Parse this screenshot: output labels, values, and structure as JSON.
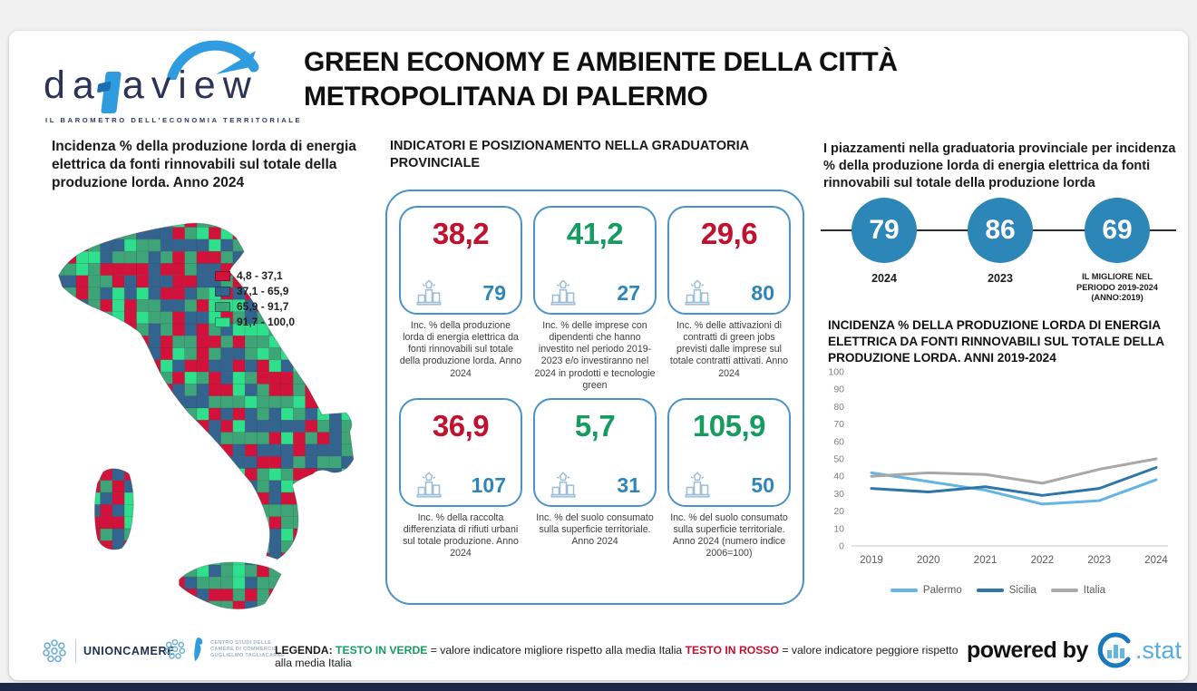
{
  "logo": {
    "wordmark_left": "da",
    "wordmark_right": "aview",
    "tagline": "IL BAROMETRO DELL'ECONOMIA TERRITORIALE"
  },
  "header": {
    "title": "GREEN ECONOMY E AMBIENTE DELLA CITTÀ METROPOLITANA DI PALERMO"
  },
  "map_section": {
    "title": "Incidenza % della produzione lorda di energia elettrica da fonti rinnovabili sul totale della produzione lorda. Anno 2024",
    "legend": [
      {
        "label": "4,8 - 37,1",
        "color": "#d2123a"
      },
      {
        "label": "37,1 - 65,9",
        "color": "#33648f"
      },
      {
        "label": "65,9 - 91,7",
        "color": "#3da578"
      },
      {
        "label": "91,7 - 100,0",
        "color": "#2ee08c"
      }
    ]
  },
  "indicators": {
    "title": "INDICATORI E POSIZIONAMENTO NELLA GRADUATORIA PROVINCIALE",
    "cards": [
      {
        "value": "38,2",
        "value_color": "#c0122f",
        "rank": "79",
        "caption": "Inc. % della produzione lorda di energia elettrica da fonti rinnovabili sul totale della produzione lorda. Anno 2024"
      },
      {
        "value": "41,2",
        "value_color": "#169c61",
        "rank": "27",
        "caption": "Inc. % delle imprese con dipendenti che hanno investito nel periodo 2019-2023 e/o investiranno nel 2024 in prodotti e tecnologie green"
      },
      {
        "value": "29,6",
        "value_color": "#c0122f",
        "rank": "80",
        "caption": "Inc. % delle attivazioni di contratti di green jobs previsti dalle imprese sul totale contratti attivati. Anno 2024"
      },
      {
        "value": "36,9",
        "value_color": "#c0122f",
        "rank": "107",
        "caption": "Inc. % della raccolta differenziata di rifiuti urbani sul totale produzione. Anno 2024"
      },
      {
        "value": "5,7",
        "value_color": "#169c61",
        "rank": "31",
        "caption": "Inc. % del suolo consumato sulla superficie territoriale. Anno 2024"
      },
      {
        "value": "105,9",
        "value_color": "#169c61",
        "rank": "50",
        "caption": "Inc. % del suolo consumato sulla superficie territoriale. Anno 2024 (numero indice 2006=100)"
      }
    ]
  },
  "rankings": {
    "title": "I piazzamenti nella graduatoria provinciale per incidenza % della produzione lorda di energia elettrica da fonti rinnovabili sul totale della produzione lorda",
    "circle_color": "#2d86b8",
    "items": [
      {
        "value": "79",
        "label": "2024"
      },
      {
        "value": "86",
        "label": "2023"
      },
      {
        "value": "69",
        "label": "IL MIGLIORE NEL PERIODO 2019-2024 (ANNO:2019)"
      }
    ]
  },
  "chart_data": {
    "type": "line",
    "title": "INCIDENZA % DELLA PRODUZIONE LORDA DI ENERGIA ELETTRICA DA FONTI RINNOVABILI SUL TOTALE DELLA PRODUZIONE LORDA. ANNI 2019-2024",
    "x": [
      2019,
      2020,
      2021,
      2022,
      2023,
      2024
    ],
    "series": [
      {
        "name": "Palermo",
        "color": "#62b5e5",
        "values": [
          42,
          37,
          32,
          24,
          26,
          38
        ]
      },
      {
        "name": "Sicilia",
        "color": "#2e75a8",
        "values": [
          33,
          31,
          34,
          29,
          33,
          45
        ]
      },
      {
        "name": "Italia",
        "color": "#a8a8a8",
        "values": [
          40,
          42,
          41,
          36,
          44,
          50
        ]
      }
    ],
    "ylim": [
      0,
      100
    ],
    "ytick_step": 10,
    "grid": false,
    "legend_position": "bottom"
  },
  "footer": {
    "unioncamere": "UNIONCAMERE",
    "tagliacarne": [
      "CENTRO STUDI DELLE",
      "CAMERE DI COMMERCIO",
      "GUGLIELMO TAGLIACARNE"
    ],
    "legenda_label": "LEGENDA:",
    "green_term": "TESTO IN VERDE",
    "green_desc": "= valore indicatore migliore rispetto alla media Italia",
    "red_term": "TESTO IN ROSSO",
    "red_desc": "= valore indicatore peggiore rispetto alla media Italia",
    "green_color": "#169c61",
    "red_color": "#c0122f",
    "powered_by": "powered by",
    "stat_label": ".stat"
  }
}
